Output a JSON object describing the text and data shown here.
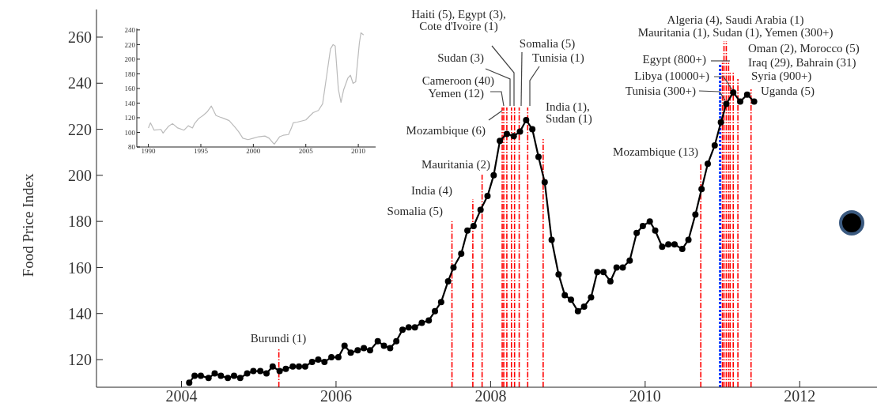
{
  "chart_data": [
    {
      "type": "line",
      "ylabel": "Food Price Index",
      "color": "#000000",
      "marker": "circle",
      "x": [
        2004.1,
        2004.17,
        2004.25,
        2004.35,
        2004.43,
        2004.51,
        2004.6,
        2004.68,
        2004.76,
        2004.85,
        2004.93,
        2005.02,
        2005.1,
        2005.18,
        2005.27,
        2005.35,
        2005.44,
        2005.52,
        2005.6,
        2005.69,
        2005.77,
        2005.85,
        2005.94,
        2006.03,
        2006.11,
        2006.19,
        2006.28,
        2006.36,
        2006.44,
        2006.54,
        2006.62,
        2006.7,
        2006.78,
        2006.86,
        2006.94,
        2007.02,
        2007.11,
        2007.2,
        2007.28,
        2007.36,
        2007.45,
        2007.52,
        2007.62,
        2007.7,
        2007.78,
        2007.87,
        2007.96,
        2008.04,
        2008.12,
        2008.21,
        2008.3,
        2008.38,
        2008.46,
        2008.54,
        2008.62,
        2008.7,
        2008.79,
        2008.88,
        2008.96,
        2009.04,
        2009.13,
        2009.21,
        2009.3,
        2009.38,
        2009.46,
        2009.55,
        2009.63,
        2009.71,
        2009.8,
        2009.89,
        2009.97,
        2010.06,
        2010.13,
        2010.22,
        2010.3,
        2010.38,
        2010.48,
        2010.56,
        2010.65,
        2010.73,
        2010.81,
        2010.9,
        2010.98,
        2011.05,
        2011.14,
        2011.23,
        2011.32,
        2011.41
      ],
      "values": [
        110,
        113,
        113,
        112,
        114,
        113,
        112,
        113,
        112,
        114,
        115,
        115,
        114,
        117,
        115,
        116,
        117,
        117,
        117,
        119,
        120,
        119,
        121,
        121,
        126,
        123,
        124,
        125,
        124,
        128,
        126,
        125,
        128,
        133,
        134,
        134,
        136,
        137,
        141,
        145,
        154,
        160,
        166,
        176,
        178,
        185,
        191,
        200,
        215,
        218,
        217,
        219,
        224,
        220,
        208,
        197,
        172,
        157,
        148,
        146,
        141,
        143,
        147,
        158,
        158,
        154,
        160,
        160,
        163,
        175,
        178,
        180,
        176,
        169,
        170,
        170,
        168,
        172,
        183,
        194,
        205,
        213,
        223,
        231,
        236,
        232,
        235,
        232
      ],
      "xlim": [
        2002.9,
        2013
      ],
      "ylim": [
        108,
        272
      ],
      "xticks": [
        2004,
        2006,
        2008,
        2010,
        2012
      ],
      "yticks": [
        120,
        140,
        160,
        180,
        200,
        220,
        240,
        260
      ],
      "ref_lines": [
        {
          "axis": "x",
          "value": 2005.26,
          "label": "Burundi (1)",
          "color": "#ff0000",
          "line_style": "dashed"
        },
        {
          "axis": "x",
          "value": 2007.5,
          "label": "Somalia (5)",
          "color": "#ff0000",
          "line_style": "dashed"
        },
        {
          "axis": "x",
          "value": 2007.77,
          "label": "India (4)",
          "color": "#ff0000",
          "line_style": "dashed"
        },
        {
          "axis": "x",
          "value": 2007.89,
          "label": "Mauritania (2)",
          "color": "#ff0000",
          "line_style": "dashed"
        },
        {
          "axis": "x",
          "value": 2008.15,
          "label": "Mozambique (6)",
          "color": "#ff0000",
          "line_style": "dashed"
        },
        {
          "axis": "x",
          "value": 2008.17,
          "label": "Yemen (12)",
          "color": "#ff0000",
          "line_style": "dashed"
        },
        {
          "axis": "x",
          "value": 2008.21,
          "label": "Cameroon (40)",
          "color": "#ff0000",
          "line_style": "dashed"
        },
        {
          "axis": "x",
          "value": 2008.27,
          "label": "Sudan (3)",
          "color": "#ff0000",
          "line_style": "dashed"
        },
        {
          "axis": "x",
          "value": 2008.31,
          "label": "Haiti (5), Egypt (3),\nCote d'Ivoire (1)",
          "color": "#ff0000",
          "line_style": "dashed"
        },
        {
          "axis": "x",
          "value": 2008.37,
          "label": "Somalia (5)",
          "color": "#ff0000",
          "line_style": "dashed"
        },
        {
          "axis": "x",
          "value": 2008.48,
          "label": "Tunisia (1)",
          "color": "#ff0000",
          "line_style": "dashed"
        },
        {
          "axis": "x",
          "value": 2008.68,
          "label": "India (1),\nSudan (1)",
          "color": "#ff0000",
          "line_style": "dashed"
        },
        {
          "axis": "x",
          "value": 2010.72,
          "label": "Mozambique (13)",
          "color": "#ff0000",
          "line_style": "dashed"
        },
        {
          "axis": "x",
          "value": 2010.97,
          "label": "Tunisia (300+)",
          "color": "#0033ff",
          "line_style": "dotted"
        },
        {
          "axis": "x",
          "value": 2011.0,
          "label": "Egypt (800+)",
          "color": "#ff0000",
          "line_style": "dashed"
        },
        {
          "axis": "x",
          "value": 2011.02,
          "label": "Algeria (4), Saudi Arabia (1)",
          "color": "#ff0000",
          "line_style": "dashed"
        },
        {
          "axis": "x",
          "value": 2011.05,
          "label": "Mauritania (1), Sudan (1), Yemen (300+)",
          "color": "#ff0000",
          "line_style": "dashed"
        },
        {
          "axis": "x",
          "value": 2011.08,
          "label": "Libya (10000+)",
          "color": "#ff0000",
          "line_style": "dashed"
        },
        {
          "axis": "x",
          "value": 2011.1,
          "label": "Oman (2), Morocco (5)",
          "color": "#ff0000",
          "line_style": "dashed"
        },
        {
          "axis": "x",
          "value": 2011.14,
          "label": "Iraq (29), Bahrain (31)",
          "color": "#ff0000",
          "line_style": "dashed"
        },
        {
          "axis": "x",
          "value": 2011.2,
          "label": "Syria (900+)",
          "color": "#ff0000",
          "line_style": "dashed"
        },
        {
          "axis": "x",
          "value": 2011.37,
          "label": "Uganda (5)",
          "color": "#ff0000",
          "line_style": "dashed"
        }
      ]
    },
    {
      "type": "line",
      "color": "#bbbbbb",
      "x": [
        1990,
        1990.2,
        1990.55,
        1991.2,
        1991.4,
        1991.9,
        1992.3,
        1992.8,
        1993.4,
        1993.8,
        1994.2,
        1994.4,
        1994.8,
        1995.2,
        1995.6,
        1996,
        1996.45,
        1996.8,
        1997.2,
        1997.7,
        1998.2,
        1998.6,
        1999,
        1999.5,
        2000,
        2000.5,
        2001.1,
        2001.5,
        2001.85,
        2002,
        2002.5,
        2002.85,
        2003.35,
        2003.6,
        2003.8,
        2004.2,
        2005,
        2005.7,
        2006.2,
        2006.6,
        2006.95,
        2007.35,
        2007.6,
        2007.8,
        2008.1,
        2008.35,
        2008.6,
        2009,
        2009.25,
        2009.5,
        2009.75,
        2010.1,
        2010.25,
        2010.5
      ],
      "values": [
        106,
        113,
        103,
        104,
        99,
        108,
        112,
        106,
        103,
        109,
        106,
        112,
        119,
        123,
        128,
        136,
        123,
        121,
        119,
        116,
        108,
        101,
        92,
        90,
        92,
        94,
        95,
        92,
        86,
        84,
        94,
        96,
        97,
        105,
        113,
        114,
        117,
        127,
        130,
        139,
        174,
        214,
        220,
        218,
        159,
        141,
        158,
        174,
        178,
        167,
        169,
        222,
        236,
        233
      ],
      "xlim": [
        1988.9,
        2011.65
      ],
      "ylim": [
        80,
        242
      ],
      "xticks": [
        1990,
        1995,
        2000,
        2005,
        2010
      ],
      "yticks": [
        80,
        100,
        120,
        140,
        160,
        180,
        200,
        220,
        240
      ]
    }
  ]
}
